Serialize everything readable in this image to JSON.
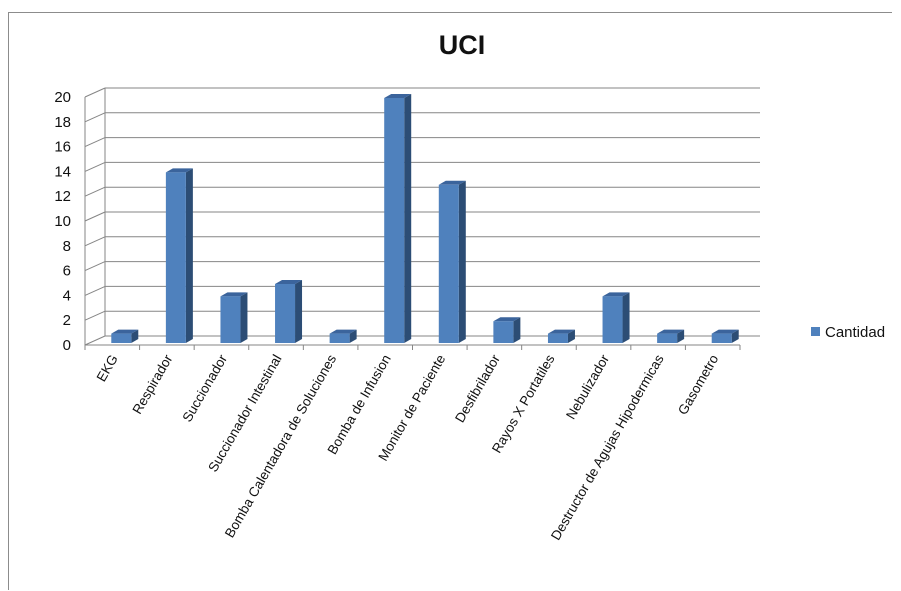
{
  "chart_data": {
    "type": "bar",
    "title": "UCI",
    "xlabel": "",
    "ylabel": "",
    "categories": [
      "EKG",
      "Respirador",
      "Succionador",
      "Succionador Intestinal",
      "Bomba Calentadora de Soluciones",
      "Bomba de Infusion",
      "Monitor de Paciente",
      "Desfibrilador",
      "Rayos X Portatiles",
      "Nebulizador",
      "Destructor de Agujas Hipodermicas",
      "Gasometro"
    ],
    "series": [
      {
        "name": "Cantidad",
        "values": [
          1,
          14,
          4,
          5,
          1,
          20,
          13,
          2,
          1,
          4,
          1,
          1
        ]
      }
    ],
    "ylim": [
      0,
      20
    ],
    "yticks": [
      "0",
      "2",
      "4",
      "6",
      "8",
      "10",
      "12",
      "14",
      "16",
      "18",
      "20"
    ],
    "grid": true,
    "legend_position": "right",
    "three_d": true
  },
  "colors": {
    "bar_front": "#4f81bd",
    "bar_side": "#2c4d75",
    "bar_top": "#3b649c",
    "grid": "#868686"
  }
}
